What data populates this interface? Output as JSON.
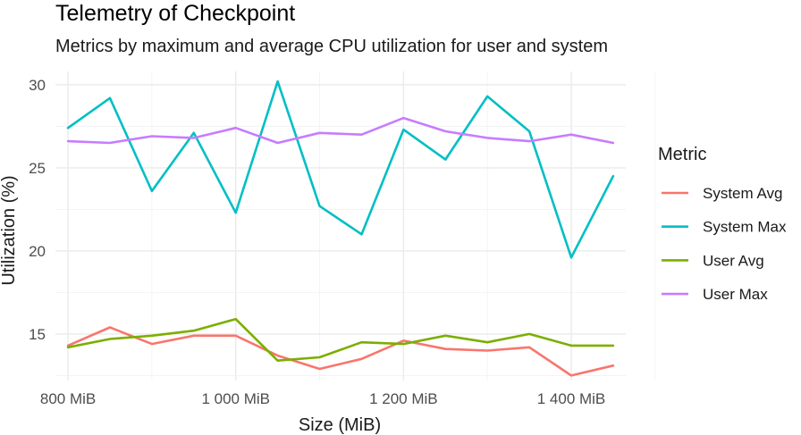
{
  "chart_data": {
    "type": "line",
    "title": "Telemetry of Checkpoint",
    "subtitle": "Metrics by maximum and average CPU utilization for user and system",
    "xlabel": "Size (MiB)",
    "ylabel": "Utilization (%)",
    "xlim": [
      785,
      1465
    ],
    "ylim": [
      12.2,
      30.8
    ],
    "x_ticks": [
      800,
      1000,
      1200,
      1400
    ],
    "x_tick_labels": [
      "800 MiB",
      "1 000 MiB",
      "1 200 MiB",
      "1 400 MiB"
    ],
    "y_ticks": [
      15,
      20,
      25,
      30
    ],
    "y_tick_labels": [
      "15",
      "20",
      "25",
      "30"
    ],
    "grid": true,
    "legend": {
      "title": "Metric",
      "position": "right"
    },
    "x": [
      800,
      850,
      900,
      950,
      1000,
      1050,
      1100,
      1150,
      1200,
      1250,
      1300,
      1350,
      1400,
      1450
    ],
    "series": [
      {
        "name": "System Avg",
        "color": "#F8766D",
        "values": [
          14.3,
          15.4,
          14.4,
          14.9,
          14.9,
          13.7,
          12.9,
          13.5,
          14.6,
          14.1,
          14.0,
          14.2,
          12.5,
          13.1
        ]
      },
      {
        "name": "System Max",
        "color": "#00BFC4",
        "values": [
          27.4,
          29.2,
          23.6,
          27.1,
          22.3,
          30.2,
          22.7,
          21.0,
          27.3,
          25.5,
          29.3,
          27.2,
          19.6,
          24.5
        ]
      },
      {
        "name": "User Avg",
        "color": "#7CAE00",
        "values": [
          14.2,
          14.7,
          14.9,
          15.2,
          15.9,
          13.4,
          13.6,
          14.5,
          14.4,
          14.9,
          14.5,
          15.0,
          14.3,
          14.3
        ]
      },
      {
        "name": "User Max",
        "color": "#C77CFF",
        "values": [
          26.6,
          26.5,
          26.9,
          26.8,
          27.4,
          26.5,
          27.1,
          27.0,
          28.0,
          27.2,
          26.8,
          26.6,
          27.0,
          26.5
        ]
      }
    ]
  }
}
